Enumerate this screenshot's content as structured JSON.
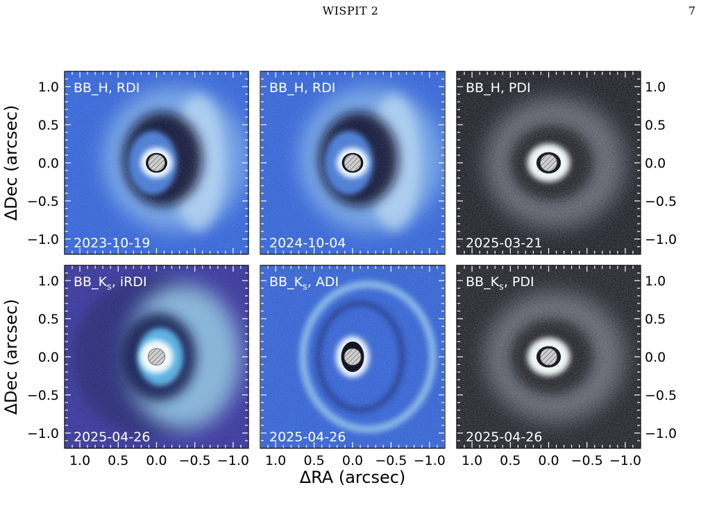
{
  "header": {
    "running_title": "WISPIT 2",
    "page_number": "7"
  },
  "figure": {
    "x_axis_title": "ΔRA (arcsec)",
    "y_axis_title": "ΔDec (arcsec)",
    "x_ticks": [
      "1.0",
      "0.5",
      "0.0",
      "−0.5",
      "−1.0"
    ],
    "y_ticks": [
      "1.0",
      "0.5",
      "0.0",
      "−0.5",
      "−1.0"
    ],
    "panels": [
      {
        "label": "BB_H, RDI",
        "date": "2023-10-19",
        "style": "rdi",
        "bg": "#3b68d6"
      },
      {
        "label": "BB_H, RDI",
        "date": "2024-10-04",
        "style": "rdi",
        "bg": "#3b68d6"
      },
      {
        "label": "BB_H, PDI",
        "date": "2025-03-21",
        "style": "pdi",
        "bg": "#23232c"
      },
      {
        "label": "BB_K, iRDI",
        "sub": "s",
        "date": "2025-04-26",
        "style": "irdi",
        "bg": "#3f3d9c"
      },
      {
        "label": "BB_K, ADI",
        "sub": "s",
        "date": "2025-04-26",
        "style": "adi",
        "bg": "#3a66d2"
      },
      {
        "label": "BB_K, PDI",
        "sub": "s",
        "date": "2025-04-26",
        "style": "pdi",
        "bg": "#26262e"
      }
    ]
  }
}
